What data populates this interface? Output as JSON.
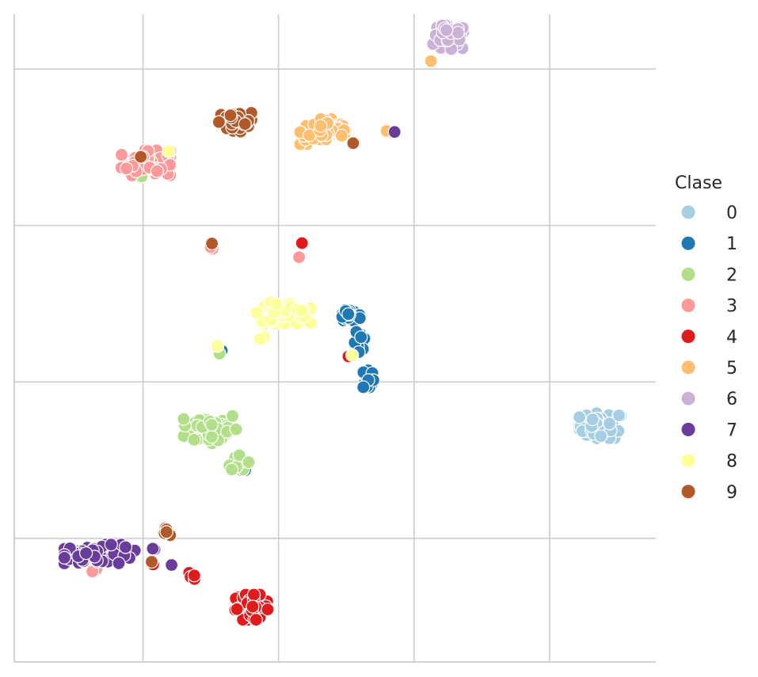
{
  "chart_data": {
    "type": "scatter",
    "title": "",
    "xlabel": "",
    "ylabel": "",
    "xlim": [
      -4.75,
      18.92
    ],
    "ylim": [
      -3.95,
      16.75
    ],
    "grid": true,
    "legend": {
      "title": "Clase",
      "placement": "right"
    },
    "series": [
      {
        "name": "0",
        "color": "#a6cee3",
        "clusters": [
          {
            "center": [
              16.9,
              3.6
            ],
            "spread": [
              0.8,
              0.4
            ],
            "count": 60
          }
        ]
      },
      {
        "name": "1",
        "color": "#1f78b4",
        "clusters": [
          {
            "center": [
              7.6,
              7.1
            ],
            "spread": [
              0.4,
              0.2
            ],
            "count": 22
          },
          {
            "center": [
              8.0,
              6.2
            ],
            "spread": [
              0.2,
              0.4
            ],
            "count": 18
          },
          {
            "center": [
              8.3,
              5.1
            ],
            "spread": [
              0.2,
              0.35
            ],
            "count": 16
          },
          {
            "center": [
              3.7,
              2.2
            ],
            "spread": [
              0.1,
              0.15
            ],
            "count": 4
          },
          {
            "center": [
              2.9,
              6.0
            ],
            "spread": [
              0.05,
              0.05
            ],
            "count": 1
          }
        ]
      },
      {
        "name": "2",
        "color": "#b2df8a",
        "clusters": [
          {
            "center": [
              2.5,
              3.5
            ],
            "spread": [
              1.0,
              0.5
            ],
            "count": 55
          },
          {
            "center": [
              3.5,
              2.5
            ],
            "spread": [
              0.4,
              0.3
            ],
            "count": 10
          },
          {
            "center": [
              -0.1,
              11.6
            ],
            "spread": [
              0.05,
              0.05
            ],
            "count": 1
          },
          {
            "center": [
              2.8,
              5.9
            ],
            "spread": [
              0.05,
              0.05
            ],
            "count": 1
          }
        ]
      },
      {
        "name": "3",
        "color": "#fb9a99",
        "clusters": [
          {
            "center": [
              0.1,
              12.0
            ],
            "spread": [
              0.9,
              0.4
            ],
            "count": 55
          },
          {
            "center": [
              2.6,
              9.3
            ],
            "spread": [
              0.1,
              0.05
            ],
            "count": 2
          },
          {
            "center": [
              0.8,
              0.2
            ],
            "spread": [
              0.1,
              0.05
            ],
            "count": 2
          },
          {
            "center": [
              -1.9,
              -1.0
            ],
            "spread": [
              0.2,
              0.1
            ],
            "count": 4
          },
          {
            "center": [
              5.8,
              9.0
            ],
            "spread": [
              0.05,
              0.05
            ],
            "count": 1
          }
        ]
      },
      {
        "name": "4",
        "color": "#e31a1c",
        "clusters": [
          {
            "center": [
              4.0,
              -2.2
            ],
            "spread": [
              0.6,
              0.4
            ],
            "count": 60
          },
          {
            "center": [
              1.6,
              -1.2
            ],
            "spread": [
              0.3,
              0.1
            ],
            "count": 4
          },
          {
            "center": [
              0.4,
              -0.8
            ],
            "spread": [
              0.05,
              0.05
            ],
            "count": 1
          },
          {
            "center": [
              5.9,
              9.4
            ],
            "spread": [
              0.05,
              0.05
            ],
            "count": 1
          },
          {
            "center": [
              7.6,
              5.8
            ],
            "spread": [
              0.05,
              0.05
            ],
            "count": 1
          }
        ]
      },
      {
        "name": "5",
        "color": "#fdbf6f",
        "clusters": [
          {
            "center": [
              6.8,
              13.0
            ],
            "spread": [
              1.0,
              0.4
            ],
            "count": 55
          },
          {
            "center": [
              9.1,
              13.0
            ],
            "spread": [
              0.3,
              0.05
            ],
            "count": 4
          },
          {
            "center": [
              3.6,
              13.2
            ],
            "spread": [
              0.05,
              0.05
            ],
            "count": 1
          },
          {
            "center": [
              10.6,
              15.3
            ],
            "spread": [
              0.05,
              0.05
            ],
            "count": 1
          }
        ]
      },
      {
        "name": "6",
        "color": "#cab2d6",
        "clusters": [
          {
            "center": [
              11.3,
              16.0
            ],
            "spread": [
              0.6,
              0.4
            ],
            "count": 55
          }
        ]
      },
      {
        "name": "7",
        "color": "#6a3d9a",
        "clusters": [
          {
            "center": [
              -1.6,
              -0.5
            ],
            "spread": [
              1.3,
              0.3
            ],
            "count": 60
          },
          {
            "center": [
              0.4,
              -0.3
            ],
            "spread": [
              0.1,
              0.05
            ],
            "count": 2
          },
          {
            "center": [
              1.1,
              -0.8
            ],
            "spread": [
              0.05,
              0.05
            ],
            "count": 1
          },
          {
            "center": [
              9.3,
              13.0
            ],
            "spread": [
              0.05,
              0.05
            ],
            "count": 1
          }
        ]
      },
      {
        "name": "8",
        "color": "#ffff99",
        "clusters": [
          {
            "center": [
              5.2,
              7.2
            ],
            "spread": [
              1.0,
              0.35
            ],
            "count": 50
          },
          {
            "center": [
              4.4,
              6.4
            ],
            "spread": [
              0.2,
              0.1
            ],
            "count": 4
          },
          {
            "center": [
              2.75,
              6.1
            ],
            "spread": [
              0.05,
              0.05
            ],
            "count": 1
          },
          {
            "center": [
              7.75,
              5.9
            ],
            "spread": [
              0.05,
              0.05
            ],
            "count": 1
          },
          {
            "center": [
              0.9,
              12.4
            ],
            "spread": [
              0.05,
              0.05
            ],
            "count": 1
          }
        ]
      },
      {
        "name": "9",
        "color": "#b15928",
        "clusters": [
          {
            "center": [
              3.4,
              13.3
            ],
            "spread": [
              0.6,
              0.3
            ],
            "count": 40
          },
          {
            "center": [
              0.9,
              0.2
            ],
            "spread": [
              0.1,
              0.2
            ],
            "count": 5
          },
          {
            "center": [
              2.5,
              9.4
            ],
            "spread": [
              0.05,
              0.05
            ],
            "count": 1
          },
          {
            "center": [
              -0.1,
              12.2
            ],
            "spread": [
              0.05,
              0.05
            ],
            "count": 1
          },
          {
            "center": [
              7.8,
              12.6
            ],
            "spread": [
              0.05,
              0.05
            ],
            "count": 1
          },
          {
            "center": [
              0.3,
              -0.7
            ],
            "spread": [
              0.05,
              0.05
            ],
            "count": 1
          }
        ]
      }
    ]
  }
}
